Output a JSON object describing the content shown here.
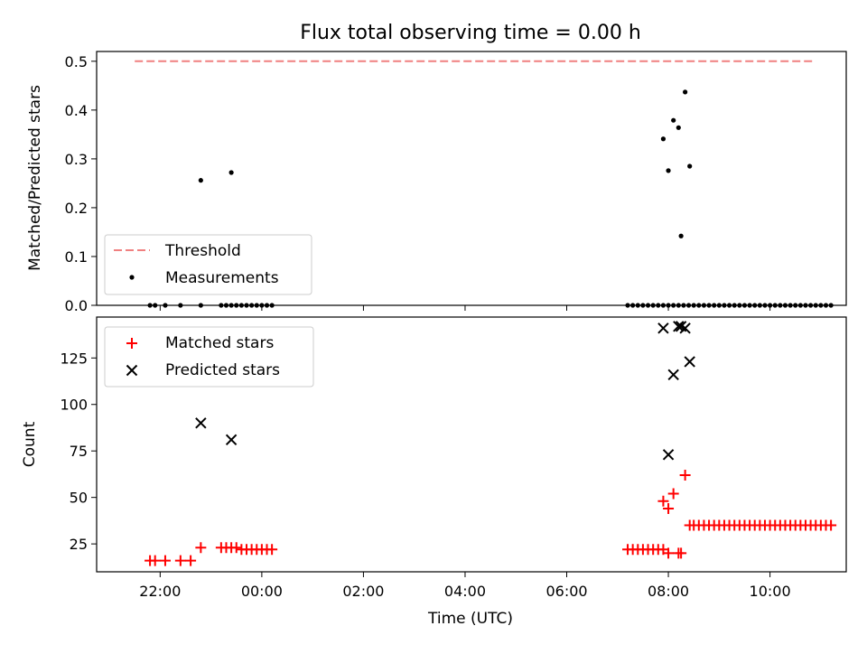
{
  "title": "Flux total observing time = 0.00 h",
  "chart_data": [
    {
      "type": "scatter",
      "panel": "top",
      "ylabel": "Matched/Predicted stars",
      "ylim": [
        0,
        0.52
      ],
      "yticks": [
        "0.0",
        "0.1",
        "0.2",
        "0.3",
        "0.4",
        "0.5"
      ],
      "xlim": [
        20.75,
        35.5
      ],
      "grid": false,
      "legend": {
        "placement": "lower-left",
        "entries": [
          "Threshold",
          "Measurements"
        ]
      },
      "series": [
        {
          "name": "Threshold",
          "kind": "dashed-line",
          "color": "#f08080",
          "x": [
            21.5,
            34.9
          ],
          "y": [
            0.5,
            0.5
          ]
        },
        {
          "name": "Measurements",
          "kind": "points",
          "color": "#000000",
          "x": [
            21.8,
            21.9,
            22.1,
            22.4,
            22.8,
            23.2,
            23.3,
            23.4,
            23.5,
            23.6,
            23.7,
            23.8,
            23.9,
            24.0,
            24.1,
            24.2,
            31.2,
            31.3,
            31.4,
            31.5,
            31.6,
            31.7,
            31.8,
            31.9,
            32.0,
            32.1,
            32.2,
            32.3,
            32.4,
            32.5,
            32.6,
            32.7,
            32.8,
            32.9,
            33.0,
            33.1,
            33.2,
            33.3,
            33.4,
            33.5,
            33.6,
            33.7,
            33.8,
            33.9,
            34.0,
            34.1,
            34.2,
            34.3,
            34.4,
            34.5,
            34.6,
            34.7,
            34.8,
            34.9,
            35.0,
            35.1,
            35.2,
            22.8,
            23.4,
            31.9,
            32.0,
            32.1,
            32.2,
            32.25,
            32.33,
            32.42
          ],
          "y": [
            0,
            0,
            0,
            0,
            0,
            0,
            0,
            0,
            0,
            0,
            0,
            0,
            0,
            0,
            0,
            0,
            0,
            0,
            0,
            0,
            0,
            0,
            0,
            0,
            0,
            0,
            0,
            0,
            0,
            0,
            0,
            0,
            0,
            0,
            0,
            0,
            0,
            0,
            0,
            0,
            0,
            0,
            0,
            0,
            0,
            0,
            0,
            0,
            0,
            0,
            0,
            0,
            0,
            0,
            0,
            0,
            0,
            0.256,
            0.272,
            0.341,
            0.276,
            0.379,
            0.364,
            0.142,
            0.437,
            0.285
          ]
        }
      ]
    },
    {
      "type": "scatter",
      "panel": "bottom",
      "xlabel": "Time (UTC)",
      "ylabel": "Count",
      "ylim": [
        10,
        147
      ],
      "yticks": [
        "25",
        "50",
        "75",
        "100",
        "125"
      ],
      "xlim": [
        20.75,
        35.5
      ],
      "xticks": [
        "22:00",
        "00:00",
        "02:00",
        "04:00",
        "06:00",
        "08:00",
        "10:00"
      ],
      "grid": false,
      "legend": {
        "placement": "upper-left",
        "entries": [
          "Matched stars",
          "Predicted stars"
        ]
      },
      "series": [
        {
          "name": "Matched stars",
          "marker": "+",
          "color": "#ff0000",
          "x": [
            21.8,
            21.9,
            22.1,
            22.4,
            22.6,
            22.8,
            23.2,
            23.3,
            23.4,
            23.5,
            23.6,
            23.7,
            23.8,
            23.9,
            24.0,
            24.1,
            24.2,
            31.2,
            31.3,
            31.4,
            31.5,
            31.6,
            31.7,
            31.8,
            31.9,
            32.0,
            32.1,
            32.2,
            32.25,
            32.33,
            32.42,
            32.5,
            32.6,
            32.7,
            32.8,
            32.9,
            33.0,
            33.1,
            33.2,
            33.3,
            33.4,
            33.5,
            33.6,
            33.7,
            33.8,
            33.9,
            34.0,
            34.1,
            34.2,
            34.3,
            34.4,
            34.5,
            34.6,
            34.7,
            34.8,
            34.9,
            35.0,
            35.1,
            35.2,
            32.0,
            31.9
          ],
          "y": [
            16,
            16,
            16,
            16,
            16,
            23,
            23,
            23,
            23,
            23,
            22,
            22,
            22,
            22,
            22,
            22,
            22,
            22,
            22,
            22,
            22,
            22,
            22,
            22,
            48,
            44,
            52,
            20,
            20,
            62,
            35,
            35,
            35,
            35,
            35,
            35,
            35,
            35,
            35,
            35,
            35,
            35,
            35,
            35,
            35,
            35,
            35,
            35,
            35,
            35,
            35,
            35,
            35,
            35,
            35,
            35,
            35,
            35,
            35,
            20,
            22
          ]
        },
        {
          "name": "Predicted stars",
          "marker": "x",
          "color": "#000000",
          "x": [
            22.8,
            23.4,
            31.9,
            32.0,
            32.1,
            32.2,
            32.25,
            32.33,
            32.42
          ],
          "y": [
            90,
            81,
            141,
            73,
            116,
            142,
            142,
            141,
            123
          ]
        }
      ]
    }
  ]
}
